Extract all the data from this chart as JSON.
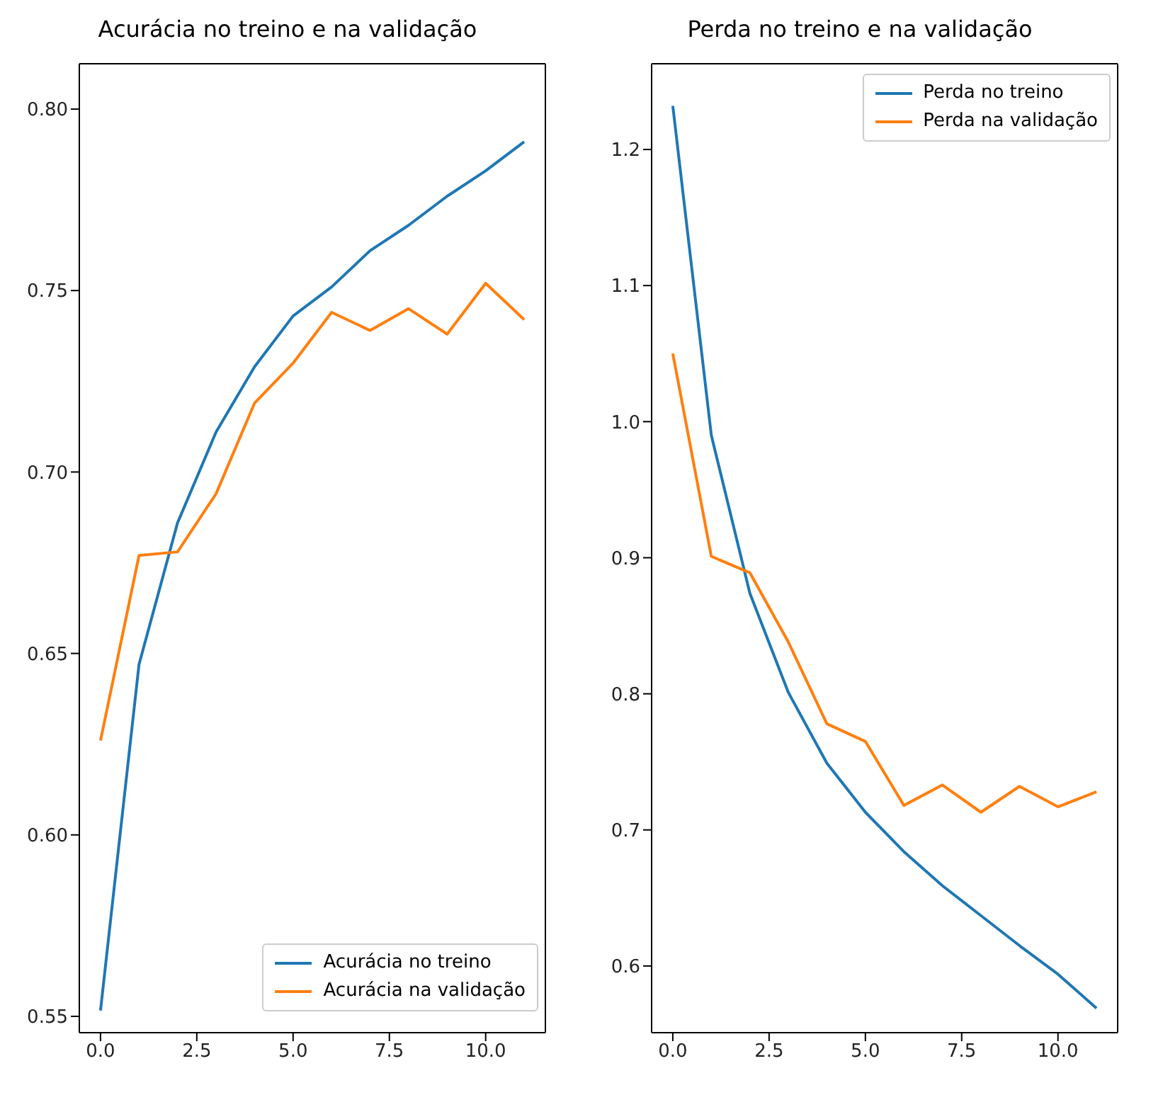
{
  "chart_data": [
    {
      "type": "line",
      "title": "Acurácia no treino e na validação",
      "x": [
        0,
        1,
        2,
        3,
        4,
        5,
        6,
        7,
        8,
        9,
        10,
        11
      ],
      "series": [
        {
          "name": "Acurácia no treino",
          "color": "#1f77b4",
          "values": [
            0.5516,
            0.647,
            0.686,
            0.711,
            0.729,
            0.743,
            0.751,
            0.761,
            0.768,
            0.776,
            0.783,
            0.791
          ]
        },
        {
          "name": "Acurácia na validação",
          "color": "#ff7f0e",
          "values": [
            0.626,
            0.677,
            0.678,
            0.694,
            0.719,
            0.73,
            0.744,
            0.739,
            0.745,
            0.738,
            0.752,
            0.742
          ]
        }
      ],
      "xlim": [
        -0.55,
        11.55
      ],
      "xticks": [
        {
          "value": 0,
          "label": "0.0"
        },
        {
          "value": 2.5,
          "label": "2.5"
        },
        {
          "value": 5,
          "label": "5.0"
        },
        {
          "value": 7.5,
          "label": "7.5"
        },
        {
          "value": 10,
          "label": "10.0"
        }
      ],
      "ylim": [
        0.5455,
        0.8125
      ],
      "yticks": [
        {
          "value": 0.55,
          "label": "0.55"
        },
        {
          "value": 0.6,
          "label": "0.60"
        },
        {
          "value": 0.65,
          "label": "0.65"
        },
        {
          "value": 0.7,
          "label": "0.70"
        },
        {
          "value": 0.75,
          "label": "0.75"
        },
        {
          "value": 0.8,
          "label": "0.80"
        }
      ],
      "legend": "bottom right",
      "grid": false,
      "marker": "none",
      "line_style": "solid"
    },
    {
      "type": "line",
      "title": "Perda no treino e na validação",
      "x": [
        0,
        1,
        2,
        3,
        4,
        5,
        6,
        7,
        8,
        9,
        10,
        11
      ],
      "series": [
        {
          "name": "Perda no treino",
          "color": "#1f77b4",
          "values": [
            1.232,
            0.99,
            0.874,
            0.801,
            0.749,
            0.713,
            0.684,
            0.659,
            0.637,
            0.615,
            0.594,
            0.569
          ]
        },
        {
          "name": "Perda na validação",
          "color": "#ff7f0e",
          "values": [
            1.05,
            0.901,
            0.889,
            0.838,
            0.778,
            0.765,
            0.718,
            0.733,
            0.713,
            0.732,
            0.717,
            0.728
          ]
        }
      ],
      "xlim": [
        -0.55,
        11.55
      ],
      "xticks": [
        {
          "value": 0,
          "label": "0.0"
        },
        {
          "value": 2.5,
          "label": "2.5"
        },
        {
          "value": 5,
          "label": "5.0"
        },
        {
          "value": 7.5,
          "label": "7.5"
        },
        {
          "value": 10,
          "label": "10.0"
        }
      ],
      "ylim": [
        0.551,
        1.263
      ],
      "yticks": [
        {
          "value": 0.6,
          "label": "0.6"
        },
        {
          "value": 0.7,
          "label": "0.7"
        },
        {
          "value": 0.8,
          "label": "0.8"
        },
        {
          "value": 0.9,
          "label": "0.9"
        },
        {
          "value": 1.0,
          "label": "1.0"
        },
        {
          "value": 1.1,
          "label": "1.1"
        },
        {
          "value": 1.2,
          "label": "1.2"
        }
      ],
      "legend": "top right",
      "grid": false,
      "marker": "none",
      "line_style": "solid"
    }
  ]
}
